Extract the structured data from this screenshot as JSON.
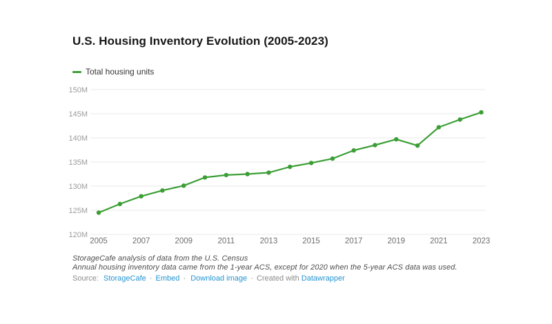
{
  "header": {
    "title": "U.S. Housing Inventory Evolution (2005-2023)"
  },
  "legend": {
    "items": [
      {
        "label": "Total housing units",
        "color": "#3b9e35"
      }
    ]
  },
  "chart_data": {
    "type": "line",
    "title": "U.S. Housing Inventory Evolution (2005-2023)",
    "xlabel": "",
    "ylabel": "",
    "unit": "M",
    "grid": "horizontal-only",
    "legend_position": "top-left",
    "x": [
      2005,
      2006,
      2007,
      2008,
      2009,
      2010,
      2011,
      2012,
      2013,
      2014,
      2015,
      2016,
      2017,
      2018,
      2019,
      2020,
      2021,
      2022,
      2023
    ],
    "series": [
      {
        "name": "Total housing units",
        "color": "#3b9e35",
        "values": [
          124.5,
          126.3,
          127.9,
          129.1,
          130.1,
          131.8,
          132.3,
          132.5,
          132.8,
          134.0,
          134.8,
          135.7,
          137.4,
          138.5,
          139.7,
          138.4,
          142.2,
          143.8,
          145.3
        ]
      }
    ],
    "ylim": [
      120,
      150
    ],
    "y_tick_step": 5,
    "y_tick_labels": [
      "120M",
      "125M",
      "130M",
      "135M",
      "140M",
      "145M",
      "150M"
    ],
    "x_tick_years": [
      2005,
      2007,
      2009,
      2011,
      2013,
      2015,
      2017,
      2019,
      2021,
      2023
    ]
  },
  "footer": {
    "notes": [
      "StorageCafe analysis of data from the U.S. Census",
      "Annual housing inventory data came from the 1-year ACS, except for 2020 when the 5-year ACS data was used."
    ],
    "source_prefix": "Source:",
    "links": [
      {
        "label": "StorageCafe"
      },
      {
        "label": "Embed"
      },
      {
        "label": "Download image"
      }
    ],
    "separator": "·",
    "created_with": "Created with",
    "created_link": "Datawrapper",
    "link_color": "#2394d2"
  },
  "style": {
    "background": "#ffffff",
    "gridline_color": "#e9e9e9",
    "y_tick_color": "#9c9c9c",
    "x_tick_color": "#6e6e6e",
    "line_color": "#3b9e35"
  }
}
